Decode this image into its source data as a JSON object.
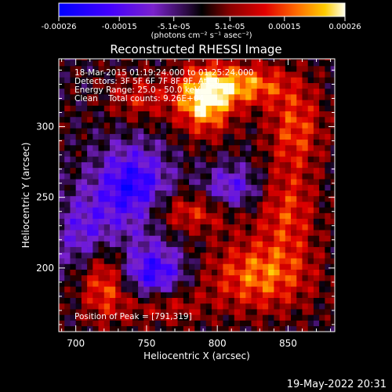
{
  "chart_data": {
    "type": "heatmap",
    "title": "Reconstructed RHESSI Image",
    "xlabel": "Heliocentric X (arcsec)",
    "ylabel": "Heliocentric Y (arcsec)",
    "xlim": [
      688,
      883
    ],
    "ylim": [
      155,
      348
    ],
    "x_ticks": [
      700,
      750,
      800,
      850
    ],
    "y_ticks": [
      200,
      250,
      300
    ],
    "colorbar": {
      "ticks": [
        {
          "value": -0.00026,
          "label": "-0.00026"
        },
        {
          "value": -0.00015,
          "label": "-0.00015"
        },
        {
          "value": -5.1e-05,
          "label": "-5.1e-05"
        },
        {
          "value": 5.1e-05,
          "label": "5.1e-05"
        },
        {
          "value": 0.00015,
          "label": "0.00015"
        },
        {
          "value": 0.00026,
          "label": "0.00026"
        }
      ],
      "range": [
        -0.00026,
        0.00026
      ],
      "units_line": "(photons cm⁻² s⁻¹ asec⁻²)"
    },
    "annotations": [
      "18-Mar-2015 01:19:24.000 to 01:25:24.000",
      "Detectors: 3F 5F 6F 7F 8F 9F, Att_0",
      "Energy Range: 25.0 - 50.0 keV",
      "Clean    Total counts: 9.26E+04"
    ],
    "peak_label": "Position of Peak = [791,319]",
    "peak": {
      "x": 791,
      "y": 319
    },
    "timestamp": "19-May-2022 20:31",
    "sources": [
      {
        "x": 791,
        "y": 319,
        "sx": 14,
        "sy": 16,
        "amp": 0.00026
      },
      {
        "x": 820,
        "y": 330,
        "sx": 20,
        "sy": 10,
        "amp": 0.00018
      },
      {
        "x": 855,
        "y": 300,
        "sx": 14,
        "sy": 22,
        "amp": 0.00014
      },
      {
        "x": 745,
        "y": 320,
        "sx": 16,
        "sy": 12,
        "amp": 0.0001
      },
      {
        "x": 780,
        "y": 240,
        "sx": 28,
        "sy": 10,
        "amp": 0.00013
      },
      {
        "x": 830,
        "y": 195,
        "sx": 26,
        "sy": 18,
        "amp": 0.00017
      },
      {
        "x": 850,
        "y": 240,
        "sx": 14,
        "sy": 22,
        "amp": 0.00012
      },
      {
        "x": 720,
        "y": 190,
        "sx": 12,
        "sy": 18,
        "amp": 0.00016
      },
      {
        "x": 760,
        "y": 175,
        "sx": 20,
        "sy": 10,
        "amp": 0.00012
      },
      {
        "x": 740,
        "y": 255,
        "sx": 18,
        "sy": 22,
        "amp": -0.00022
      },
      {
        "x": 755,
        "y": 195,
        "sx": 16,
        "sy": 14,
        "amp": -0.0002
      },
      {
        "x": 810,
        "y": 255,
        "sx": 14,
        "sy": 12,
        "amp": -0.00015
      },
      {
        "x": 705,
        "y": 225,
        "sx": 14,
        "sy": 20,
        "amp": -0.00012
      }
    ]
  }
}
